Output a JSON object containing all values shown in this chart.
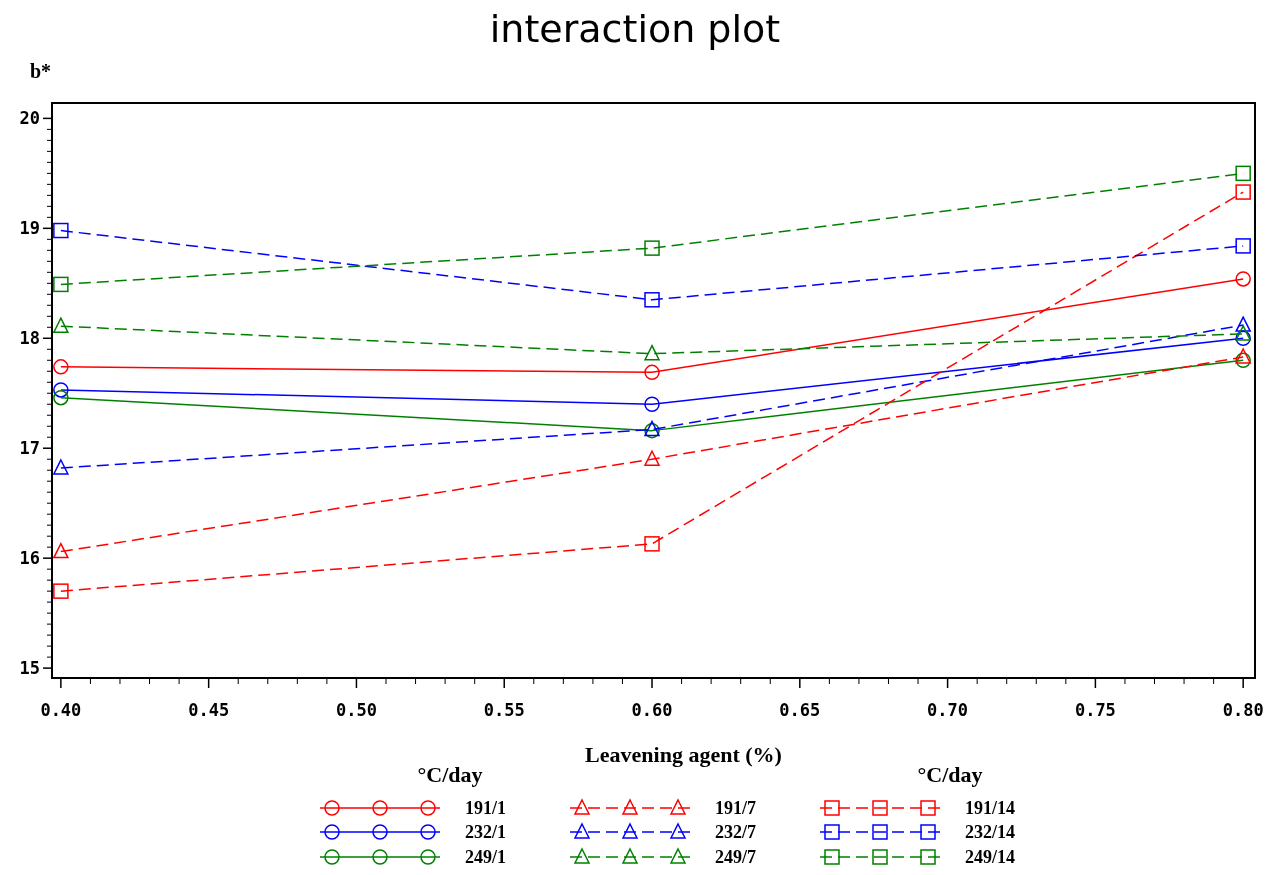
{
  "chart_data": {
    "type": "line",
    "title": "interaction plot",
    "xlabel": "Leavening agent (%)",
    "ylabel": "b*",
    "legend_title": "°C/day",
    "x": [
      0.4,
      0.6,
      0.8
    ],
    "xlim": [
      0.397,
      0.804
    ],
    "ylim": [
      14.91,
      20.14
    ],
    "xticks": [
      {
        "value": 0.4,
        "label": "0.40"
      },
      {
        "value": 0.45,
        "label": "0.45"
      },
      {
        "value": 0.5,
        "label": "0.50"
      },
      {
        "value": 0.55,
        "label": "0.55"
      },
      {
        "value": 0.6,
        "label": "0.60"
      },
      {
        "value": 0.65,
        "label": "0.65"
      },
      {
        "value": 0.7,
        "label": "0.70"
      },
      {
        "value": 0.75,
        "label": "0.75"
      },
      {
        "value": 0.8,
        "label": "0.80"
      }
    ],
    "yticks": [
      15,
      16,
      17,
      18,
      19,
      20
    ],
    "grid": false,
    "legend": "bottom",
    "series": [
      {
        "name": "191/1",
        "color": "#ff0000",
        "marker": "circle",
        "line_style": "solid",
        "values": [
          17.74,
          17.69,
          18.54
        ]
      },
      {
        "name": "232/1",
        "color": "#0000ff",
        "marker": "circle",
        "line_style": "solid",
        "values": [
          17.53,
          17.4,
          18.0
        ]
      },
      {
        "name": "249/1",
        "color": "#008000",
        "marker": "circle",
        "line_style": "solid",
        "values": [
          17.46,
          17.16,
          17.8
        ]
      },
      {
        "name": "191/7",
        "color": "#ff0000",
        "marker": "triangle",
        "line_style": "dashed",
        "values": [
          16.06,
          16.9,
          17.83
        ]
      },
      {
        "name": "232/7",
        "color": "#0000ff",
        "marker": "triangle",
        "line_style": "dashed",
        "values": [
          16.82,
          17.17,
          18.12
        ]
      },
      {
        "name": "249/7",
        "color": "#008000",
        "marker": "triangle",
        "line_style": "dashed",
        "values": [
          18.11,
          17.86,
          18.04
        ]
      },
      {
        "name": "191/14",
        "color": "#ff0000",
        "marker": "square",
        "line_style": "dashed",
        "values": [
          15.7,
          16.13,
          19.33
        ]
      },
      {
        "name": "232/14",
        "color": "#0000ff",
        "marker": "square",
        "line_style": "dashed",
        "values": [
          18.98,
          18.35,
          18.84
        ]
      },
      {
        "name": "249/14",
        "color": "#008000",
        "marker": "square",
        "line_style": "dashed",
        "values": [
          18.49,
          18.82,
          19.5
        ]
      }
    ]
  }
}
